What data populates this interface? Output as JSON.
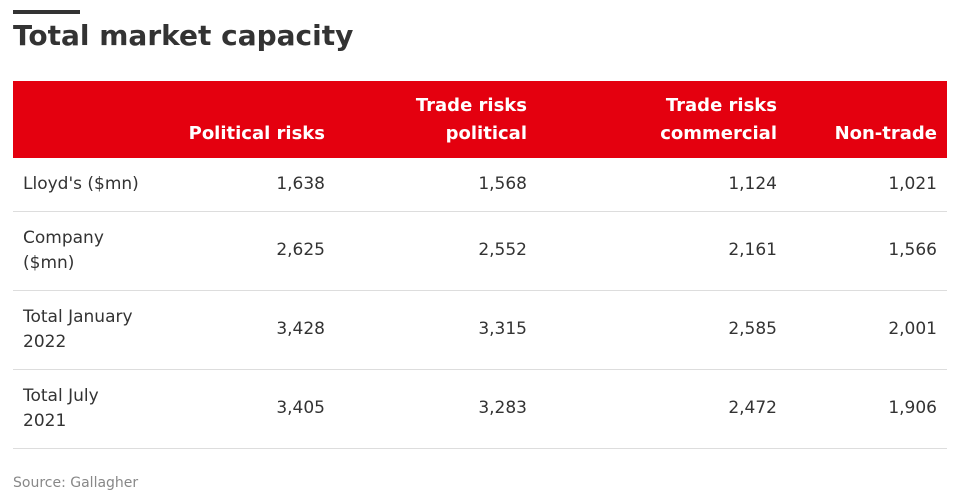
{
  "title": "Total market capacity",
  "source": "Source: Gallagher",
  "colors": {
    "header_bg": "#e4000f",
    "header_text": "#ffffff",
    "rule": "#dddddd"
  },
  "chart_data": {
    "type": "table",
    "title": "Total market capacity",
    "columns": [
      "",
      "Political risks",
      "Trade risks\npolitical",
      "Trade risks\ncommercial",
      "Non-trade"
    ],
    "rows": [
      {
        "label": "Lloyd's ($mn)",
        "values": [
          "1,638",
          "1,568",
          "1,124",
          "1,021"
        ]
      },
      {
        "label": "Company\n($mn)",
        "values": [
          "2,625",
          "2,552",
          "2,161",
          "1,566"
        ]
      },
      {
        "label": "Total January\n2022",
        "values": [
          "3,428",
          "3,315",
          "2,585",
          "2,001"
        ]
      },
      {
        "label": "Total July\n2021",
        "values": [
          "3,405",
          "3,283",
          "2,472",
          "1,906"
        ]
      }
    ]
  }
}
